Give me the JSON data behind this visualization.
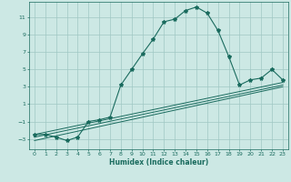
{
  "xlabel": "Humidex (Indice chaleur)",
  "bg_color": "#cce8e4",
  "grid_color": "#a0c8c4",
  "line_color": "#1a6b5e",
  "x_ticks": [
    0,
    1,
    2,
    3,
    4,
    5,
    6,
    7,
    8,
    9,
    10,
    11,
    12,
    13,
    14,
    15,
    16,
    17,
    18,
    19,
    20,
    21,
    22,
    23
  ],
  "y_ticks": [
    -3,
    -1,
    1,
    3,
    5,
    7,
    9,
    11
  ],
  "xlim": [
    -0.5,
    23.5
  ],
  "ylim": [
    -4.2,
    12.8
  ],
  "series": [
    {
      "x": [
        0,
        1,
        2,
        3,
        4,
        5,
        6,
        7,
        8,
        9,
        10,
        11,
        12,
        13,
        14,
        15,
        16,
        17,
        18,
        19,
        20,
        21,
        22,
        23
      ],
      "y": [
        -2.5,
        -2.5,
        -2.8,
        -3.2,
        -2.8,
        -1.0,
        -0.8,
        -0.5,
        3.2,
        5.0,
        6.8,
        8.5,
        10.5,
        10.8,
        11.8,
        12.2,
        11.5,
        9.5,
        6.5,
        3.2,
        3.8,
        4.0,
        5.0,
        3.8
      ],
      "marker": "*",
      "markersize": 3
    },
    {
      "x": [
        0,
        23
      ],
      "y": [
        -2.5,
        3.5
      ]
    },
    {
      "x": [
        0,
        23
      ],
      "y": [
        -2.8,
        3.2
      ]
    },
    {
      "x": [
        0,
        23
      ],
      "y": [
        -3.2,
        3.0
      ]
    }
  ]
}
